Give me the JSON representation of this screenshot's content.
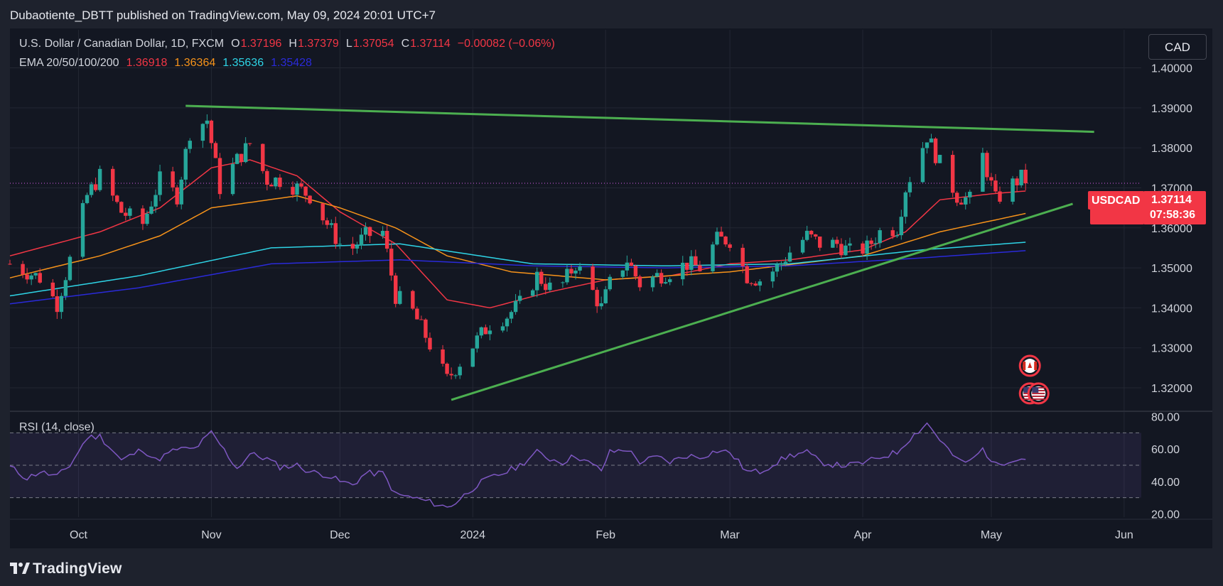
{
  "header": {
    "published": "Dubaotiente_DBTT published on TradingView.com, May 09, 2024 20:01 UTC+7"
  },
  "legend": {
    "symbol": "U.S. Dollar / Canadian Dollar, 1D, FXCM",
    "open_label": "O",
    "open": "1.37196",
    "high_label": "H",
    "high": "1.37379",
    "low_label": "L",
    "low": "1.37054",
    "close_label": "C",
    "close": "1.37114",
    "change": "−0.00082 (−0.06%)",
    "ema_label": "EMA 20/50/100/200",
    "ema20": "1.36918",
    "ema50": "1.36364",
    "ema100": "1.35636",
    "ema200": "1.35428"
  },
  "currency_button": "CAD",
  "price_tag": {
    "symbol": "USDCAD",
    "price": "1.37114",
    "countdown": "07:58:36"
  },
  "rsi": {
    "label": "RSI (14, close)"
  },
  "footer": {
    "brand": "TradingView"
  },
  "colors": {
    "up": "#26a69a",
    "down": "#f23645",
    "ema20": "#f23645",
    "ema50": "#f7931a",
    "ema100": "#2ed4e6",
    "ema200": "#2a2ad9",
    "trendline": "#4caf50",
    "rsi": "#7e57c2"
  },
  "chart_data": {
    "type": "candlestick",
    "x_ticks": [
      {
        "label": "Oct",
        "date": "2023-10-01"
      },
      {
        "label": "Nov",
        "date": "2023-11-01"
      },
      {
        "label": "Dec",
        "date": "2023-12-01"
      },
      {
        "label": "2024",
        "date": "2024-01-01"
      },
      {
        "label": "Feb",
        "date": "2024-02-01"
      },
      {
        "label": "Mar",
        "date": "2024-03-01"
      },
      {
        "label": "Apr",
        "date": "2024-04-01"
      },
      {
        "label": "May",
        "date": "2024-05-01"
      },
      {
        "label": "Jun",
        "date": "2024-06-01"
      }
    ],
    "x_range": [
      "2023-09-15",
      "2024-06-05"
    ],
    "price_ticks": [
      "1.40000",
      "1.39000",
      "1.38000",
      "1.37000",
      "1.36000",
      "1.35000",
      "1.34000",
      "1.33000",
      "1.32000"
    ],
    "price_range": [
      1.3145,
      1.4095
    ],
    "rsi_ticks": [
      "80.00",
      "60.00",
      "40.00",
      "20.00"
    ],
    "rsi_range": [
      18,
      82
    ],
    "rsi_band": [
      30,
      70
    ],
    "current_price": 1.37114,
    "anchors": [
      [
        "2023-09-15",
        1.351
      ],
      [
        "2023-09-22",
        1.3475
      ],
      [
        "2023-09-26",
        1.341
      ],
      [
        "2023-09-29",
        1.352
      ],
      [
        "2023-10-03",
        1.368
      ],
      [
        "2023-10-06",
        1.373
      ],
      [
        "2023-10-11",
        1.364
      ],
      [
        "2023-10-16",
        1.361
      ],
      [
        "2023-10-20",
        1.372
      ],
      [
        "2023-10-24",
        1.368
      ],
      [
        "2023-10-27",
        1.384
      ],
      [
        "2023-10-31",
        1.387
      ],
      [
        "2023-11-03",
        1.37
      ],
      [
        "2023-11-07",
        1.377
      ],
      [
        "2023-11-10",
        1.381
      ],
      [
        "2023-11-14",
        1.372
      ],
      [
        "2023-11-17",
        1.372
      ],
      [
        "2023-11-21",
        1.37
      ],
      [
        "2023-11-24",
        1.368
      ],
      [
        "2023-11-28",
        1.361
      ],
      [
        "2023-12-01",
        1.356
      ],
      [
        "2023-12-04",
        1.355
      ],
      [
        "2023-12-07",
        1.358
      ],
      [
        "2023-12-11",
        1.359
      ],
      [
        "2023-12-14",
        1.343
      ],
      [
        "2023-12-18",
        1.339
      ],
      [
        "2023-12-21",
        1.333
      ],
      [
        "2023-12-26",
        1.322
      ],
      [
        "2023-12-28",
        1.325
      ],
      [
        "2024-01-02",
        1.332
      ],
      [
        "2024-01-05",
        1.336
      ],
      [
        "2024-01-09",
        1.338
      ],
      [
        "2024-01-12",
        1.341
      ],
      [
        "2024-01-16",
        1.348
      ],
      [
        "2024-01-19",
        1.345
      ],
      [
        "2024-01-22",
        1.346
      ],
      [
        "2024-01-25",
        1.351
      ],
      [
        "2024-01-29",
        1.344
      ],
      [
        "2024-01-31",
        1.34
      ],
      [
        "2024-02-02",
        1.346
      ],
      [
        "2024-02-06",
        1.352
      ],
      [
        "2024-02-09",
        1.346
      ],
      [
        "2024-02-13",
        1.348
      ],
      [
        "2024-02-16",
        1.349
      ],
      [
        "2024-02-20",
        1.351
      ],
      [
        "2024-02-23",
        1.35
      ],
      [
        "2024-02-27",
        1.357
      ],
      [
        "2024-03-01",
        1.357
      ],
      [
        "2024-03-05",
        1.348
      ],
      [
        "2024-03-08",
        1.347
      ],
      [
        "2024-03-12",
        1.35
      ],
      [
        "2024-03-15",
        1.354
      ],
      [
        "2024-03-19",
        1.358
      ],
      [
        "2024-03-22",
        1.356
      ],
      [
        "2024-03-26",
        1.356
      ],
      [
        "2024-03-29",
        1.354
      ],
      [
        "2024-04-02",
        1.355
      ],
      [
        "2024-04-05",
        1.359
      ],
      [
        "2024-04-09",
        1.36
      ],
      [
        "2024-04-11",
        1.37
      ],
      [
        "2024-04-16",
        1.383
      ],
      [
        "2024-04-19",
        1.376
      ],
      [
        "2024-04-23",
        1.368
      ],
      [
        "2024-04-26",
        1.367
      ],
      [
        "2024-04-29",
        1.378
      ],
      [
        "2024-05-02",
        1.367
      ],
      [
        "2024-05-06",
        1.371
      ],
      [
        "2024-05-08",
        1.3725
      ],
      [
        "2024-05-09",
        1.3711
      ]
    ],
    "ema_series": [
      {
        "name": "EMA 20",
        "color_key": "ema20",
        "points": [
          [
            "2023-09-15",
            1.353
          ],
          [
            "2023-10-06",
            1.359
          ],
          [
            "2023-10-20",
            1.365
          ],
          [
            "2023-11-01",
            1.375
          ],
          [
            "2023-11-10",
            1.377
          ],
          [
            "2023-11-21",
            1.373
          ],
          [
            "2023-12-01",
            1.364
          ],
          [
            "2023-12-14",
            1.356
          ],
          [
            "2023-12-26",
            1.342
          ],
          [
            "2024-01-05",
            1.34
          ],
          [
            "2024-01-19",
            1.344
          ],
          [
            "2024-02-01",
            1.347
          ],
          [
            "2024-02-16",
            1.348
          ],
          [
            "2024-03-01",
            1.351
          ],
          [
            "2024-03-15",
            1.352
          ],
          [
            "2024-04-01",
            1.3545
          ],
          [
            "2024-04-11",
            1.359
          ],
          [
            "2024-04-19",
            1.367
          ],
          [
            "2024-05-01",
            1.3685
          ],
          [
            "2024-05-09",
            1.3692
          ]
        ]
      },
      {
        "name": "EMA 50",
        "color_key": "ema50",
        "points": [
          [
            "2023-09-15",
            1.3475
          ],
          [
            "2023-10-06",
            1.353
          ],
          [
            "2023-10-20",
            1.358
          ],
          [
            "2023-11-01",
            1.365
          ],
          [
            "2023-11-21",
            1.368
          ],
          [
            "2023-12-01",
            1.365
          ],
          [
            "2023-12-14",
            1.36
          ],
          [
            "2023-12-26",
            1.353
          ],
          [
            "2024-01-10",
            1.349
          ],
          [
            "2024-02-01",
            1.347
          ],
          [
            "2024-03-01",
            1.349
          ],
          [
            "2024-04-01",
            1.353
          ],
          [
            "2024-04-19",
            1.359
          ],
          [
            "2024-05-09",
            1.3636
          ]
        ]
      },
      {
        "name": "EMA 100",
        "color_key": "ema100",
        "points": [
          [
            "2023-09-15",
            1.343
          ],
          [
            "2023-10-15",
            1.348
          ],
          [
            "2023-11-15",
            1.355
          ],
          [
            "2023-12-15",
            1.356
          ],
          [
            "2024-01-15",
            1.351
          ],
          [
            "2024-02-15",
            1.3505
          ],
          [
            "2024-03-15",
            1.351
          ],
          [
            "2024-04-15",
            1.3545
          ],
          [
            "2024-05-09",
            1.3564
          ]
        ]
      },
      {
        "name": "EMA 200",
        "color_key": "ema200",
        "points": [
          [
            "2023-09-15",
            1.341
          ],
          [
            "2023-10-15",
            1.345
          ],
          [
            "2023-11-15",
            1.351
          ],
          [
            "2023-12-15",
            1.352
          ],
          [
            "2024-01-15",
            1.3505
          ],
          [
            "2024-02-15",
            1.35
          ],
          [
            "2024-03-15",
            1.3505
          ],
          [
            "2024-04-15",
            1.3525
          ],
          [
            "2024-05-09",
            1.3543
          ]
        ]
      }
    ],
    "trendlines": [
      {
        "name": "upper",
        "points": [
          [
            "2023-10-26",
            1.3905
          ],
          [
            "2024-05-25",
            1.384
          ]
        ]
      },
      {
        "name": "lower",
        "points": [
          [
            "2023-12-27",
            1.317
          ],
          [
            "2024-05-20",
            1.366
          ]
        ]
      }
    ],
    "rsi_anchors": [
      [
        "2023-09-15",
        49
      ],
      [
        "2023-09-19",
        42
      ],
      [
        "2023-09-22",
        46
      ],
      [
        "2023-09-26",
        43
      ],
      [
        "2023-09-29",
        50
      ],
      [
        "2023-10-03",
        67
      ],
      [
        "2023-10-06",
        68
      ],
      [
        "2023-10-11",
        53
      ],
      [
        "2023-10-16",
        60
      ],
      [
        "2023-10-19",
        53
      ],
      [
        "2023-10-24",
        60
      ],
      [
        "2023-10-28",
        60
      ],
      [
        "2023-11-01",
        70
      ],
      [
        "2023-11-03",
        63
      ],
      [
        "2023-11-07",
        48
      ],
      [
        "2023-11-10",
        57
      ],
      [
        "2023-11-14",
        54
      ],
      [
        "2023-11-17",
        49
      ],
      [
        "2023-11-21",
        50
      ],
      [
        "2023-11-24",
        46
      ],
      [
        "2023-11-28",
        44
      ],
      [
        "2023-12-01",
        40
      ],
      [
        "2023-12-04",
        38
      ],
      [
        "2023-12-07",
        45
      ],
      [
        "2023-12-11",
        45
      ],
      [
        "2023-12-14",
        32
      ],
      [
        "2023-12-18",
        30
      ],
      [
        "2023-12-21",
        28
      ],
      [
        "2023-12-26",
        24
      ],
      [
        "2023-12-28",
        27
      ],
      [
        "2024-01-02",
        38
      ],
      [
        "2024-01-05",
        42
      ],
      [
        "2024-01-09",
        46
      ],
      [
        "2024-01-12",
        50
      ],
      [
        "2024-01-16",
        58
      ],
      [
        "2024-01-19",
        54
      ],
      [
        "2024-01-22",
        52
      ],
      [
        "2024-01-25",
        56
      ],
      [
        "2024-01-29",
        50
      ],
      [
        "2024-01-31",
        47
      ],
      [
        "2024-02-02",
        58
      ],
      [
        "2024-02-06",
        60
      ],
      [
        "2024-02-09",
        52
      ],
      [
        "2024-02-13",
        55
      ],
      [
        "2024-02-16",
        52
      ],
      [
        "2024-02-20",
        56
      ],
      [
        "2024-02-23",
        55
      ],
      [
        "2024-02-27",
        59
      ],
      [
        "2024-03-01",
        58
      ],
      [
        "2024-03-05",
        46
      ],
      [
        "2024-03-08",
        46
      ],
      [
        "2024-03-12",
        52
      ],
      [
        "2024-03-15",
        56
      ],
      [
        "2024-03-19",
        58
      ],
      [
        "2024-03-22",
        52
      ],
      [
        "2024-03-26",
        50
      ],
      [
        "2024-03-29",
        50
      ],
      [
        "2024-04-02",
        52
      ],
      [
        "2024-04-05",
        55
      ],
      [
        "2024-04-09",
        58
      ],
      [
        "2024-04-11",
        64
      ],
      [
        "2024-04-16",
        76
      ],
      [
        "2024-04-19",
        66
      ],
      [
        "2024-04-23",
        53
      ],
      [
        "2024-04-26",
        52
      ],
      [
        "2024-04-29",
        60
      ],
      [
        "2024-05-02",
        50
      ],
      [
        "2024-05-06",
        54
      ],
      [
        "2024-05-09",
        54
      ]
    ],
    "event_flags": [
      {
        "flag": "CA",
        "date": "2024-05-10",
        "price": 1.3255
      },
      {
        "flag": "US",
        "date": "2024-05-10",
        "price": 1.3186
      },
      {
        "flag": "US",
        "date": "2024-05-12",
        "price": 1.3186
      }
    ]
  }
}
